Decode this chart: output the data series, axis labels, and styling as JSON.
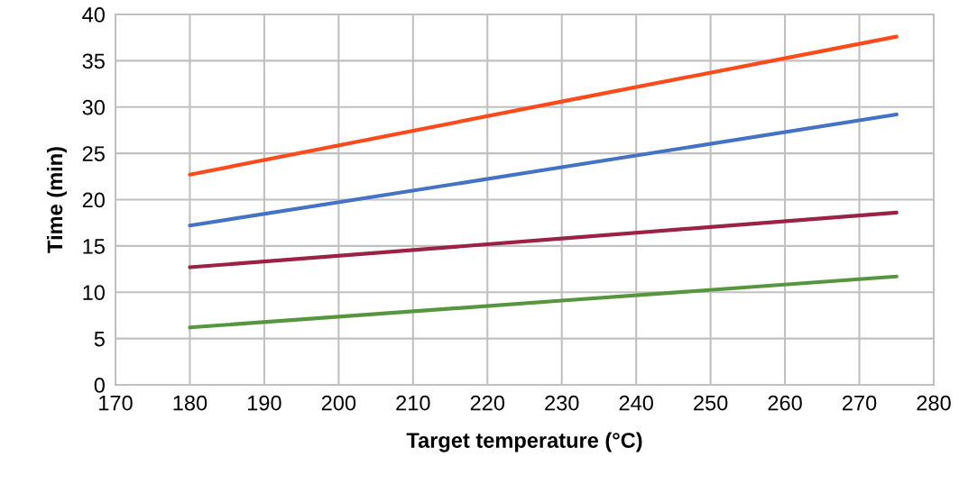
{
  "chart_data": {
    "type": "line",
    "xlabel": "Target temperature (°C)",
    "ylabel": "Time (min)",
    "x": [
      180,
      230,
      275
    ],
    "series": [
      {
        "color": "#ff4a1c",
        "values": [
          22.7,
          30.6,
          37.6
        ]
      },
      {
        "color": "#4472c4",
        "values": [
          17.2,
          23.5,
          29.2
        ]
      },
      {
        "color": "#9b2245",
        "values": [
          12.7,
          15.8,
          18.6
        ]
      },
      {
        "color": "#56963f",
        "values": [
          6.2,
          9.1,
          11.7
        ]
      }
    ],
    "xlim": [
      170,
      280
    ],
    "xticks": [
      170,
      180,
      190,
      200,
      210,
      220,
      230,
      240,
      250,
      260,
      270,
      280
    ],
    "ylim": [
      0,
      40
    ],
    "yticks": [
      0,
      5,
      10,
      15,
      20,
      25,
      30,
      35,
      40
    ],
    "grid": true,
    "marker": "none",
    "line_style": "solid"
  }
}
